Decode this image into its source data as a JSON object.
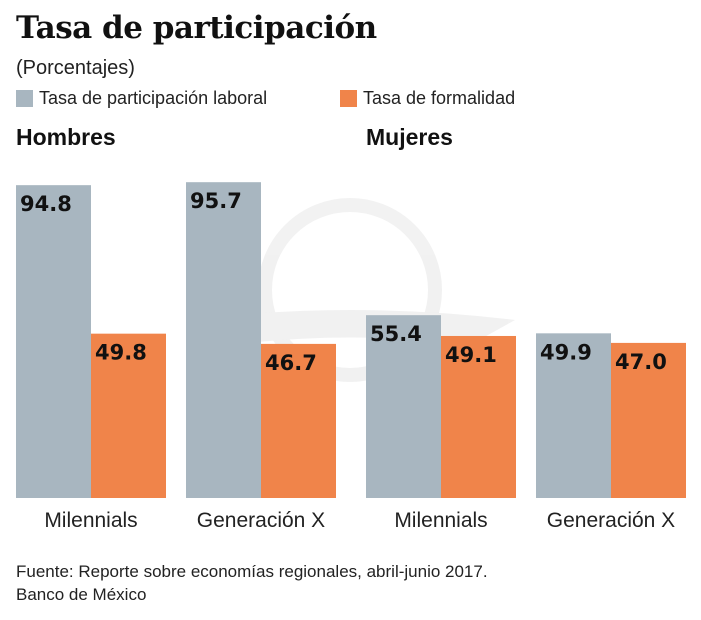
{
  "chart_data": {
    "type": "bar",
    "title": "Tasa de participación",
    "subtitle": "(Porcentajes)",
    "legend_placement": "top-left",
    "ylim": [
      0,
      100
    ],
    "grid": false,
    "series": [
      {
        "name": "Tasa de participación laboral",
        "color": "#a8b6c0"
      },
      {
        "name": "Tasa de formalidad",
        "color": "#f0844a"
      }
    ],
    "panels": [
      {
        "title": "Hombres",
        "categories": [
          "Milennials",
          "Generación X"
        ],
        "values": [
          [
            94.8,
            49.8
          ],
          [
            95.7,
            46.7
          ]
        ],
        "labels": [
          [
            "94.8",
            "49.8"
          ],
          [
            "95.7",
            "46.7"
          ]
        ]
      },
      {
        "title": "Mujeres",
        "categories": [
          "Milennials",
          "Generación X"
        ],
        "values": [
          [
            55.4,
            49.1
          ],
          [
            49.9,
            47.0
          ]
        ],
        "labels": [
          [
            "55.4",
            "49.1"
          ],
          [
            "49.9",
            "47.0"
          ]
        ]
      }
    ]
  },
  "source": {
    "line1": "Fuente: Reporte sobre economías regionales, abril-junio 2017.",
    "line2": "Banco de México"
  }
}
